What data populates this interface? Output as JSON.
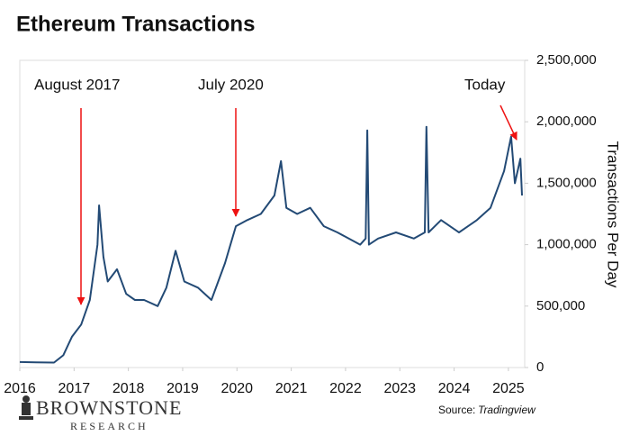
{
  "chart_data": {
    "type": "line",
    "title": "Ethereum Transactions",
    "y_label": "Transactions Per Day",
    "annotations": [
      "August 2017",
      "July 2020",
      "Today"
    ],
    "source_label": "Source:",
    "source_name": "Tradingview",
    "brand": "BROWNSTONE",
    "brand_sub": "RESEARCH",
    "xlim": [
      2016,
      2025.3
    ],
    "xticks": [
      2016,
      2017,
      2018,
      2019,
      2020,
      2021,
      2022,
      2023,
      2024,
      2025
    ],
    "ylim": [
      0,
      2500000
    ],
    "yticks": [
      0,
      {
        "value": 500000,
        "label": "500,000"
      },
      {
        "value": 1000000,
        "label": "1,000,000"
      },
      {
        "value": 1500000,
        "label": "1,500,000"
      },
      {
        "value": 2000000,
        "label": "2,000,000"
      },
      {
        "value": 2500000,
        "label": "2,500,000"
      }
    ],
    "series": [
      {
        "name": "Transactions",
        "color": "#234a75",
        "x": [
          2016.0,
          2016.3,
          2016.63,
          2016.8,
          2016.96,
          2017.13,
          2017.29,
          2017.43,
          2017.46,
          2017.54,
          2017.62,
          2017.79,
          2017.96,
          2018.12,
          2018.29,
          2018.54,
          2018.7,
          2018.87,
          2019.03,
          2019.28,
          2019.53,
          2019.78,
          2019.98,
          2020.19,
          2020.44,
          2020.69,
          2020.81,
          2020.91,
          2021.11,
          2021.35,
          2021.6,
          2021.85,
          2022.27,
          2022.37,
          2022.4,
          2022.43,
          2022.6,
          2022.93,
          2023.26,
          2023.46,
          2023.49,
          2023.53,
          2023.76,
          2024.09,
          2024.42,
          2024.67,
          2024.92,
          2025.05,
          2025.12,
          2025.22,
          2025.25
        ],
        "values": [
          45000,
          42000,
          40000,
          100000,
          250000,
          350000,
          550000,
          1000000,
          1320000,
          900000,
          700000,
          800000,
          600000,
          550000,
          550000,
          500000,
          650000,
          950000,
          700000,
          650000,
          550000,
          850000,
          1150000,
          1200000,
          1250000,
          1400000,
          1680000,
          1300000,
          1250000,
          1300000,
          1150000,
          1100000,
          1000000,
          1050000,
          1930000,
          1000000,
          1050000,
          1100000,
          1050000,
          1100000,
          1960000,
          1100000,
          1200000,
          1100000,
          1200000,
          1300000,
          1600000,
          1880000,
          1500000,
          1700000,
          1400000
        ]
      }
    ]
  }
}
